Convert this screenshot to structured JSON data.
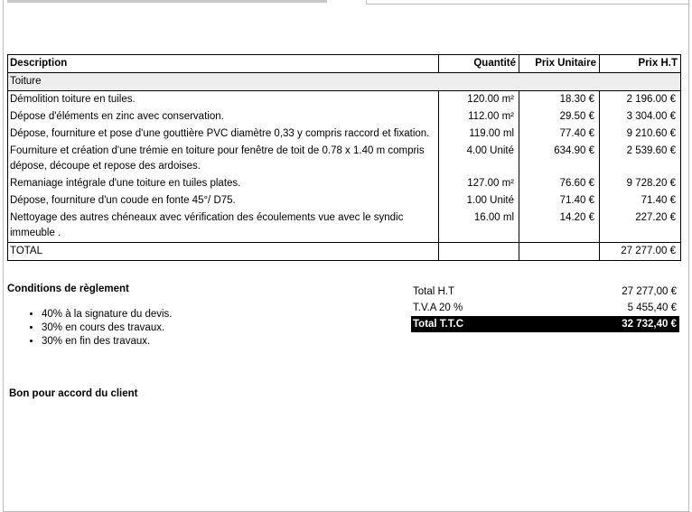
{
  "table": {
    "headers": {
      "description": "Description",
      "quantity": "Quantité",
      "unit_price": "Prix Unitaire",
      "total": "Prix H.T"
    },
    "section": "Toiture",
    "rows": [
      {
        "description": "Démolition toiture en tuiles.",
        "quantity": "120.00 m²",
        "unit_price": "18.30 €",
        "total": "2 196.00 €"
      },
      {
        "description": "Dépose d'éléments en zinc avec conservation.",
        "quantity": "112.00 m²",
        "unit_price": "29.50 €",
        "total": "3 304.00 €"
      },
      {
        "description": "Dépose, fourniture et pose d'une gouttière PVC diamètre 0,33 y compris raccord et fixation.",
        "quantity": "119.00 ml",
        "unit_price": "77.40 €",
        "total": "9 210.60 €"
      },
      {
        "description": "Fourniture et création d'une trémie en toiture pour fenêtre de toit de 0.78 x 1.40 m compris dépose, découpe et repose des ardoises.",
        "quantity": "4.00 Unité",
        "unit_price": "634.90 €",
        "total": "2 539.60 €"
      },
      {
        "description": "Remaniage intégrale d'une toiture en tuiles plates.",
        "quantity": "127.00 m²",
        "unit_price": "76.60 €",
        "total": "9 728.20 €"
      },
      {
        "description": "Dépose, fourniture d'un coude en fonte 45°/ D75.",
        "quantity": "1.00 Unité",
        "unit_price": "71.40 €",
        "total": "71.40 €"
      },
      {
        "description": "Nettoyage des autres chéneaux avec vérification des écoulements vue avec le syndic immeuble .",
        "quantity": "16.00 ml",
        "unit_price": "14.20 €",
        "total": "227.20 €"
      }
    ],
    "total_label": "TOTAL",
    "total_value": "27 277.00 €"
  },
  "conditions": {
    "title": "Conditions de règlement",
    "items": [
      "40% à la signature du devis.",
      "30% en cours des travaux.",
      "30% en fin des travaux."
    ]
  },
  "totals": {
    "ht_label": "Total H.T",
    "ht_value": "27 277,00 €",
    "tva_label": "T.V.A 20 %",
    "tva_value": "5 455,40 €",
    "ttc_label": "Total T.T.C",
    "ttc_value": "32 732,40 €"
  },
  "signature": "Bon pour accord du client"
}
